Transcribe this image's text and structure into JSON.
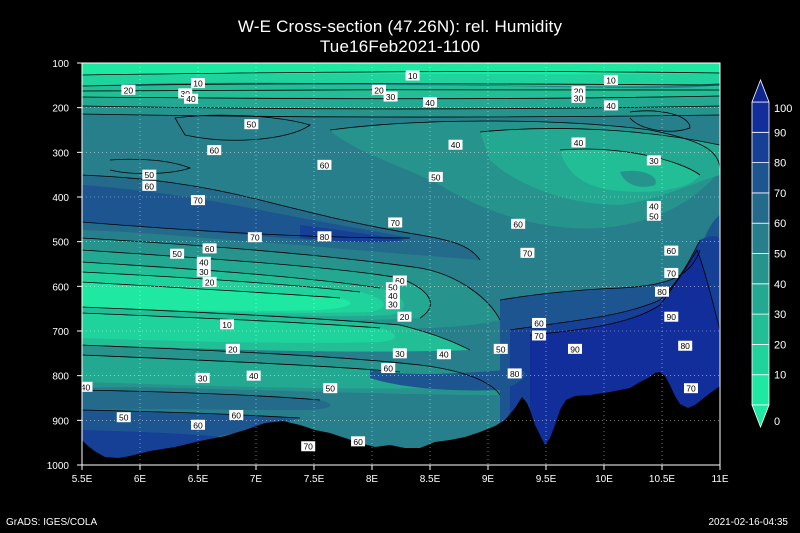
{
  "title": "W-E Cross-section (47.26N): rel. Humidity",
  "subtitle": "Tue16Feb2021-1100",
  "footer_left": "GrADS: IGES/COLA",
  "footer_right": "2021-02-16-04:35",
  "chart_data": {
    "type": "heatmap",
    "title": "W-E Cross-section (47.26N): rel. Humidity",
    "subtitle": "Tue16Feb2021-1100",
    "x_ticks": [
      "5.5E",
      "6E",
      "6.5E",
      "7E",
      "7.5E",
      "8E",
      "8.5E",
      "9E",
      "9.5E",
      "10E",
      "10.5E",
      "11E"
    ],
    "x_range": [
      5.5,
      11.0
    ],
    "y_ticks": [
      100,
      200,
      300,
      400,
      500,
      600,
      700,
      800,
      900,
      1000
    ],
    "y_range": [
      100,
      1000
    ],
    "y_inverted": true,
    "grid": true,
    "colorbar": {
      "levels": [
        0,
        10,
        20,
        30,
        40,
        50,
        60,
        70,
        80,
        90,
        100
      ],
      "colors": [
        "#1fe8a3",
        "#1fd49c",
        "#22bf96",
        "#23a991",
        "#26948c",
        "#267f8a",
        "#246a8a",
        "#1c5590",
        "#163f96",
        "#112e9a"
      ],
      "tick_labels": [
        "0",
        "10",
        "20",
        "30",
        "40",
        "50",
        "60",
        "70",
        "80",
        "90",
        "100"
      ],
      "placement": "right"
    },
    "contour_labels": [
      {
        "text": "10",
        "x": 6.5,
        "y": 145
      },
      {
        "text": "20",
        "x": 5.9,
        "y": 160
      },
      {
        "text": "30",
        "x": 6.39,
        "y": 168
      },
      {
        "text": "40",
        "x": 6.44,
        "y": 180
      },
      {
        "text": "20",
        "x": 8.06,
        "y": 160
      },
      {
        "text": "30",
        "x": 8.16,
        "y": 175
      },
      {
        "text": "10",
        "x": 8.35,
        "y": 128
      },
      {
        "text": "40",
        "x": 8.5,
        "y": 188
      },
      {
        "text": "10",
        "x": 10.06,
        "y": 138
      },
      {
        "text": "20",
        "x": 9.78,
        "y": 163
      },
      {
        "text": "30",
        "x": 9.78,
        "y": 178
      },
      {
        "text": "40",
        "x": 10.06,
        "y": 195
      },
      {
        "text": "50",
        "x": 6.96,
        "y": 237
      },
      {
        "text": "60",
        "x": 6.64,
        "y": 295
      },
      {
        "text": "40",
        "x": 8.72,
        "y": 283
      },
      {
        "text": "40",
        "x": 9.78,
        "y": 278
      },
      {
        "text": "30",
        "x": 10.43,
        "y": 318
      },
      {
        "text": "50",
        "x": 6.08,
        "y": 350
      },
      {
        "text": "60",
        "x": 6.08,
        "y": 375
      },
      {
        "text": "60",
        "x": 7.59,
        "y": 328
      },
      {
        "text": "50",
        "x": 8.55,
        "y": 355
      },
      {
        "text": "70",
        "x": 6.5,
        "y": 407
      },
      {
        "text": "40",
        "x": 10.43,
        "y": 420
      },
      {
        "text": "50",
        "x": 10.43,
        "y": 442
      },
      {
        "text": "70",
        "x": 8.2,
        "y": 457
      },
      {
        "text": "60",
        "x": 9.26,
        "y": 460
      },
      {
        "text": "70",
        "x": 6.99,
        "y": 490
      },
      {
        "text": "80",
        "x": 7.59,
        "y": 488
      },
      {
        "text": "50",
        "x": 6.32,
        "y": 527
      },
      {
        "text": "60",
        "x": 6.6,
        "y": 515
      },
      {
        "text": "40",
        "x": 6.55,
        "y": 545
      },
      {
        "text": "30",
        "x": 6.55,
        "y": 567
      },
      {
        "text": "20",
        "x": 6.6,
        "y": 590
      },
      {
        "text": "70",
        "x": 9.34,
        "y": 525
      },
      {
        "text": "60",
        "x": 10.58,
        "y": 520
      },
      {
        "text": "70",
        "x": 10.58,
        "y": 570
      },
      {
        "text": "60",
        "x": 8.24,
        "y": 587
      },
      {
        "text": "50",
        "x": 8.18,
        "y": 602
      },
      {
        "text": "40",
        "x": 8.18,
        "y": 620
      },
      {
        "text": "30",
        "x": 8.18,
        "y": 640
      },
      {
        "text": "20",
        "x": 8.28,
        "y": 668
      },
      {
        "text": "80",
        "x": 10.5,
        "y": 612
      },
      {
        "text": "10",
        "x": 6.75,
        "y": 685
      },
      {
        "text": "60",
        "x": 9.44,
        "y": 682
      },
      {
        "text": "70",
        "x": 9.44,
        "y": 710
      },
      {
        "text": "90",
        "x": 10.58,
        "y": 668
      },
      {
        "text": "20",
        "x": 6.8,
        "y": 740
      },
      {
        "text": "30",
        "x": 8.24,
        "y": 750
      },
      {
        "text": "40",
        "x": 8.62,
        "y": 752
      },
      {
        "text": "50",
        "x": 9.11,
        "y": 740
      },
      {
        "text": "90",
        "x": 9.75,
        "y": 740
      },
      {
        "text": "80",
        "x": 10.7,
        "y": 733
      },
      {
        "text": "60",
        "x": 8.14,
        "y": 783
      },
      {
        "text": "80",
        "x": 9.23,
        "y": 795
      },
      {
        "text": "30",
        "x": 6.54,
        "y": 805
      },
      {
        "text": "40",
        "x": 6.98,
        "y": 800
      },
      {
        "text": "40",
        "x": 5.53,
        "y": 825
      },
      {
        "text": "50",
        "x": 7.64,
        "y": 828
      },
      {
        "text": "70",
        "x": 10.75,
        "y": 828
      },
      {
        "text": "50",
        "x": 5.86,
        "y": 893
      },
      {
        "text": "60",
        "x": 6.5,
        "y": 910
      },
      {
        "text": "60",
        "x": 6.83,
        "y": 888
      },
      {
        "text": "60",
        "x": 7.88,
        "y": 947
      },
      {
        "text": "70",
        "x": 7.45,
        "y": 958
      }
    ]
  }
}
